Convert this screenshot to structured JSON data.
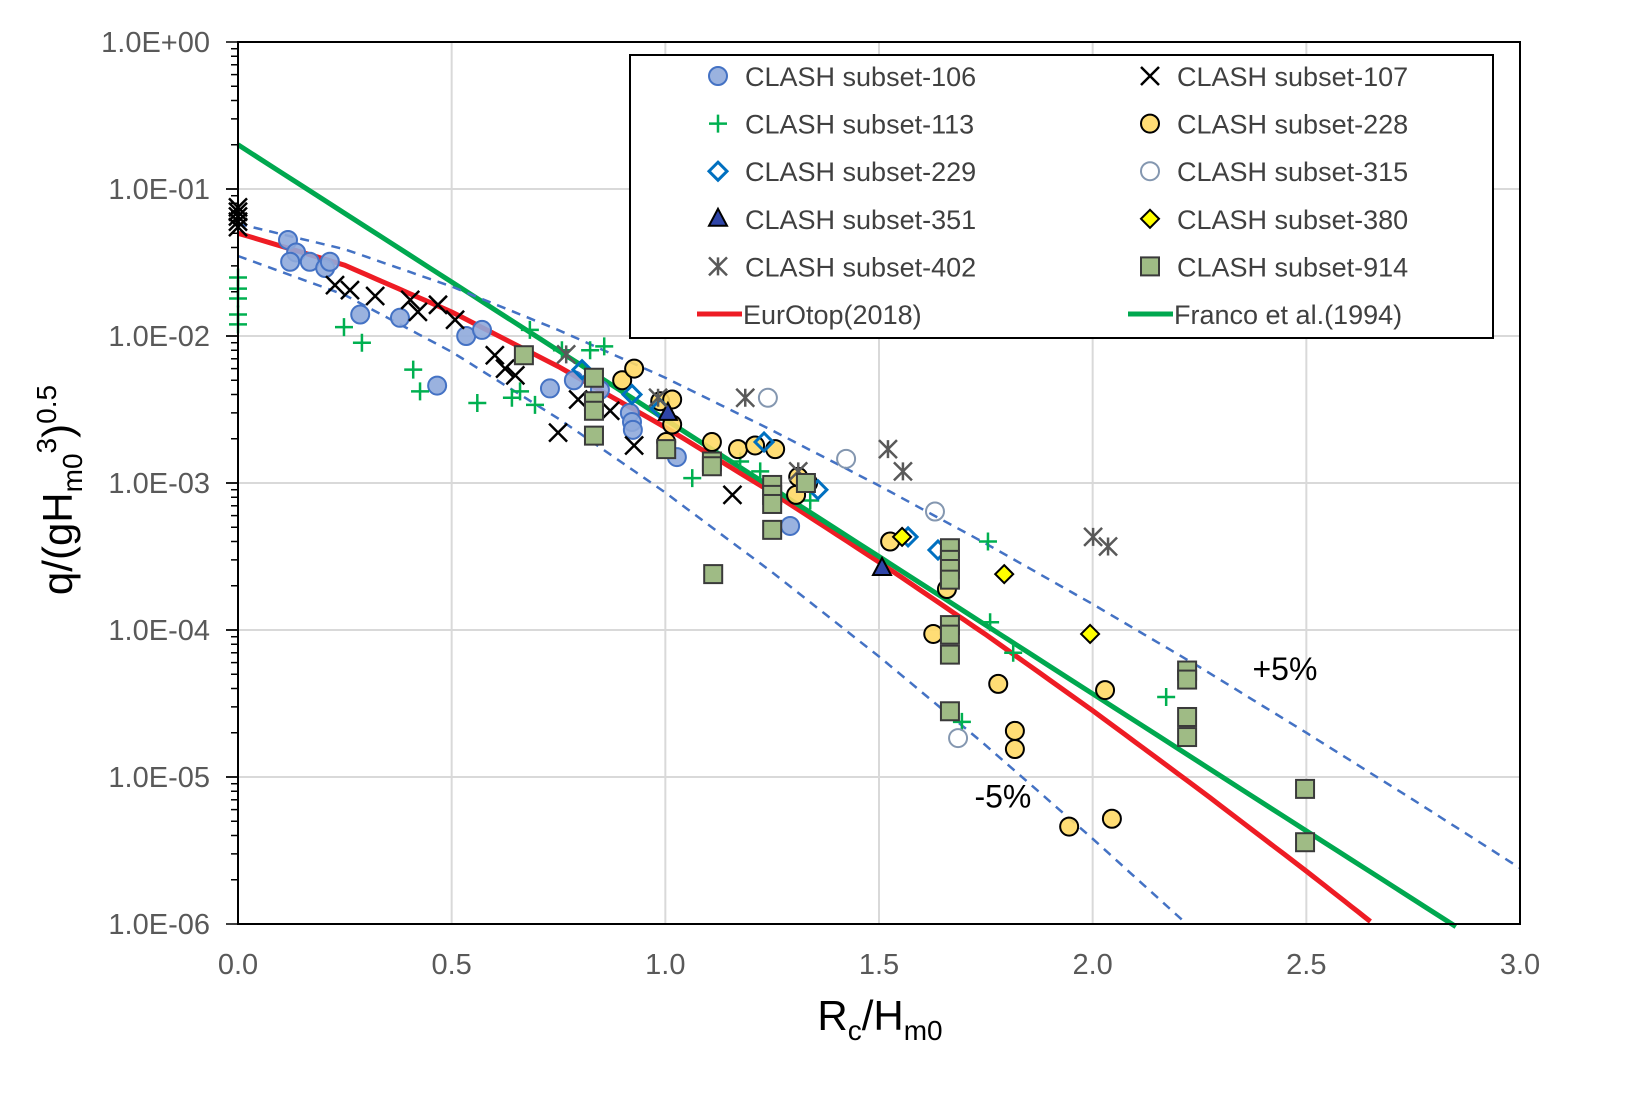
{
  "chart_data": {
    "type": "scatter",
    "title": "",
    "xlabel": {
      "main": "R",
      "sub1": "c",
      "mid": "/H",
      "sub2": "m0"
    },
    "ylabel": {
      "main": "q/(gH",
      "sub": "m0",
      "sup1": "3",
      "close": ")",
      "sup2": "0.5"
    },
    "xlim": [
      0,
      3.0
    ],
    "ylim": [
      1e-06,
      1
    ],
    "y_scale": "log",
    "grid": true,
    "legend_placement": "top-right",
    "x_ticks": [
      "0.0",
      "0.5",
      "1.0",
      "1.5",
      "2.0",
      "2.5",
      "3.0"
    ],
    "y_ticks": [
      "1.0E-06",
      "1.0E-05",
      "1.0E-04",
      "1.0E-03",
      "1.0E-02",
      "1.0E-01",
      "1.0E+00"
    ],
    "annotations": [
      {
        "text": "+5%",
        "x": 2.45,
        "y": 5.5e-05
      },
      {
        "text": "-5%",
        "x": 1.79,
        "y": 7.5e-06
      }
    ],
    "series": [
      {
        "name": "CLASH subset-106",
        "marker": "circle",
        "fill": "#8faadc",
        "stroke": "#4472c4",
        "points": [
          [
            0.117,
            0.045
          ],
          [
            0.136,
            0.037
          ],
          [
            0.122,
            0.032
          ],
          [
            0.168,
            0.032
          ],
          [
            0.204,
            0.029
          ],
          [
            0.215,
            0.032
          ],
          [
            0.286,
            0.014
          ],
          [
            0.379,
            0.0133
          ],
          [
            0.466,
            0.0046
          ],
          [
            0.534,
            0.01
          ],
          [
            0.571,
            0.011
          ],
          [
            0.73,
            0.0044
          ],
          [
            0.786,
            0.005
          ],
          [
            0.847,
            0.0043
          ],
          [
            0.917,
            0.003
          ],
          [
            0.922,
            0.0026
          ],
          [
            0.924,
            0.0023
          ],
          [
            1.027,
            0.0015
          ],
          [
            1.292,
            0.00051
          ]
        ]
      },
      {
        "name": "CLASH subset-107",
        "marker": "x",
        "fill": "none",
        "stroke": "#000000",
        "points": [
          [
            0,
            0.055
          ],
          [
            0,
            0.06
          ],
          [
            0,
            0.065
          ],
          [
            0,
            0.07
          ],
          [
            0,
            0.075
          ],
          [
            0.227,
            0.0222
          ],
          [
            0.262,
            0.0205
          ],
          [
            0.321,
            0.0187
          ],
          [
            0.403,
            0.0176
          ],
          [
            0.421,
            0.0146
          ],
          [
            0.468,
            0.0163
          ],
          [
            0.508,
            0.0129
          ],
          [
            0.601,
            0.0074
          ],
          [
            0.625,
            0.006
          ],
          [
            0.649,
            0.0054
          ],
          [
            0.749,
            0.0022
          ],
          [
            0.796,
            0.0037
          ],
          [
            0.871,
            0.0031
          ],
          [
            0.927,
            0.0018
          ],
          [
            1.157,
            0.00083
          ]
        ]
      },
      {
        "name": "CLASH subset-113",
        "marker": "plus",
        "fill": "none",
        "stroke": "#00b050",
        "points": [
          [
            0,
            0.025
          ],
          [
            0,
            0.021
          ],
          [
            0,
            0.018
          ],
          [
            0,
            0.014
          ],
          [
            0,
            0.012
          ],
          [
            0.248,
            0.0115
          ],
          [
            0.29,
            0.009
          ],
          [
            0.41,
            0.0059
          ],
          [
            0.426,
            0.0042
          ],
          [
            0.56,
            0.0035
          ],
          [
            0.641,
            0.0038
          ],
          [
            0.66,
            0.0042
          ],
          [
            0.695,
            0.0034
          ],
          [
            0.683,
            0.011
          ],
          [
            0.758,
            0.008
          ],
          [
            0.824,
            0.008
          ],
          [
            0.857,
            0.0085
          ],
          [
            1.063,
            0.00108
          ],
          [
            1.175,
            0.0014
          ],
          [
            1.222,
            0.0012
          ],
          [
            1.339,
            0.00076
          ],
          [
            1.755,
            0.0004
          ],
          [
            1.76,
            0.000113
          ],
          [
            1.814,
            7e-05
          ],
          [
            1.694,
            2.37e-05
          ],
          [
            2.172,
            3.5e-05
          ]
        ]
      },
      {
        "name": "CLASH subset-228",
        "marker": "circle",
        "fill": "#ffd966",
        "stroke": "#000000",
        "points": [
          [
            0.899,
            0.005
          ],
          [
            0.927,
            0.006
          ],
          [
            0.988,
            0.0036
          ],
          [
            1.016,
            0.0037
          ],
          [
            1.002,
            0.0019
          ],
          [
            1.016,
            0.0025
          ],
          [
            1.109,
            0.0019
          ],
          [
            1.17,
            0.0017
          ],
          [
            1.21,
            0.0018
          ],
          [
            1.257,
            0.0017
          ],
          [
            1.311,
            0.0011
          ],
          [
            1.334,
            0.001
          ],
          [
            1.306,
            0.00083
          ],
          [
            1.526,
            0.0004
          ],
          [
            1.627,
            9.4e-05
          ],
          [
            1.659,
            0.00019
          ],
          [
            1.779,
            4.3e-05
          ],
          [
            1.818,
            2.06e-05
          ],
          [
            1.818,
            1.55e-05
          ],
          [
            2.029,
            3.9e-05
          ],
          [
            1.945,
            4.6e-06
          ],
          [
            2.045,
            5.2e-06
          ]
        ]
      },
      {
        "name": "CLASH subset-229",
        "marker": "diamond-open",
        "fill": "none",
        "stroke": "#0070c0",
        "points": [
          [
            0.805,
            0.0059
          ],
          [
            0.922,
            0.004
          ],
          [
            0.988,
            0.0032
          ],
          [
            1.231,
            0.0019
          ],
          [
            1.357,
            0.0009
          ],
          [
            1.568,
            0.00043
          ],
          [
            1.638,
            0.00035
          ]
        ]
      },
      {
        "name": "CLASH subset-315",
        "marker": "circle-open",
        "fill": "none",
        "stroke": "#8497b0",
        "points": [
          [
            1.24,
            0.0038
          ],
          [
            1.423,
            0.00146
          ],
          [
            1.631,
            0.00064
          ],
          [
            1.685,
            1.84e-05
          ]
        ]
      },
      {
        "name": "CLASH subset-351",
        "marker": "triangle",
        "fill": "#2f45a8",
        "stroke": "#000000",
        "points": [
          [
            1.006,
            0.003
          ],
          [
            1.507,
            0.000264
          ]
        ]
      },
      {
        "name": "CLASH subset-380",
        "marker": "diamond",
        "fill": "#ffff00",
        "stroke": "#000000",
        "points": [
          [
            1.554,
            0.00043
          ],
          [
            1.793,
            0.00024
          ],
          [
            1.994,
            9.4e-05
          ]
        ]
      },
      {
        "name": "CLASH subset-402",
        "marker": "asterisk",
        "fill": "none",
        "stroke": "#595959",
        "points": [
          [
            0.768,
            0.0075
          ],
          [
            0.983,
            0.0038
          ],
          [
            1.187,
            0.0038
          ],
          [
            1.311,
            0.0012
          ],
          [
            1.521,
            0.0017
          ],
          [
            1.556,
            0.0012
          ],
          [
            2.001,
            0.00043
          ],
          [
            2.036,
            0.00037
          ]
        ]
      },
      {
        "name": "CLASH subset-914",
        "marker": "square",
        "fill": "#9fbb85",
        "stroke": "#3a3a3a",
        "points": [
          [
            0.669,
            0.0074
          ],
          [
            0.833,
            0.0052
          ],
          [
            0.833,
            0.0036
          ],
          [
            0.833,
            0.0031
          ],
          [
            0.833,
            0.0021
          ],
          [
            1.002,
            0.0017
          ],
          [
            1.109,
            0.0014
          ],
          [
            1.109,
            0.0013
          ],
          [
            1.112,
            0.00024
          ],
          [
            1.25,
            0.00097
          ],
          [
            1.25,
            0.00083
          ],
          [
            1.25,
            0.00072
          ],
          [
            1.25,
            0.00048
          ],
          [
            1.329,
            0.001
          ],
          [
            1.666,
            0.00036
          ],
          [
            1.666,
            0.0003
          ],
          [
            1.666,
            0.00026
          ],
          [
            1.666,
            0.00022
          ],
          [
            1.666,
            0.000108
          ],
          [
            1.666,
            9.3e-05
          ],
          [
            1.666,
            6.8e-05
          ],
          [
            1.666,
            2.8e-05
          ],
          [
            2.221,
            5.3e-05
          ],
          [
            2.221,
            4.6e-05
          ],
          [
            2.221,
            2.56e-05
          ],
          [
            2.221,
            1.87e-05
          ],
          [
            2.497,
            8.3e-06
          ],
          [
            2.497,
            3.6e-06
          ]
        ]
      }
    ],
    "lines": [
      {
        "name": "EurOtop(2018)",
        "color": "#ee1c24",
        "dash": false,
        "x": [
          0,
          0.25,
          0.5,
          0.75,
          1.0,
          1.25,
          1.5,
          1.75,
          2.0,
          2.25,
          2.5,
          2.65
        ],
        "y": [
          0.05,
          0.0303,
          0.01457,
          0.00619,
          0.00239,
          0.00086,
          0.00029,
          9.3e-05,
          2.83e-05,
          8.2e-06,
          2.29e-06,
          1.04e-06
        ]
      },
      {
        "name": "Franco et al.(1994)",
        "color": "#00a84f",
        "dash": false,
        "x": [
          0,
          0.5,
          1.0,
          1.5,
          2.0,
          2.5,
          2.85
        ],
        "y": [
          0.2,
          0.0233,
          0.00271,
          0.000316,
          3.68e-05,
          4.3e-06,
          9.6e-07
        ]
      },
      {
        "name": "",
        "color": "#4472c4",
        "dash": true,
        "x": [
          0,
          0.25,
          0.5,
          0.75,
          1.0,
          1.25,
          1.5,
          1.75,
          2.0,
          2.25,
          2.5,
          2.75,
          3.0
        ],
        "y": [
          0.058,
          0.0389,
          0.0217,
          0.01097,
          0.0052,
          0.00228,
          0.00096,
          0.000387,
          0.00015,
          5.6e-05,
          2e-05,
          7e-06,
          2.4e-06
        ]
      },
      {
        "name": "",
        "color": "#4472c4",
        "dash": true,
        "x": [
          0,
          0.25,
          0.5,
          0.75,
          1.0,
          1.25,
          1.5,
          1.75,
          2.0,
          2.22
        ],
        "y": [
          0.035,
          0.019,
          0.0078,
          0.00274,
          0.00086,
          0.000247,
          6.6e-05,
          1.64e-05,
          3.8e-06,
          1e-06
        ]
      }
    ]
  }
}
